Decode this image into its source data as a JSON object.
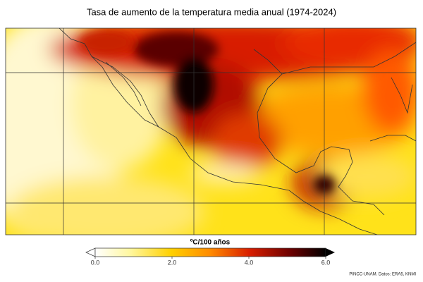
{
  "title": "Tasa de aumento de la temperatura media anual (1974-2024)",
  "colorbar": {
    "label": "ºC/100 años",
    "lim": [
      0,
      6
    ],
    "ticks": [
      {
        "value": 0,
        "label": "0.0"
      },
      {
        "value": 2,
        "label": "2.0"
      },
      {
        "value": 4,
        "label": "4.0"
      },
      {
        "value": 6,
        "label": "6.0"
      }
    ]
  },
  "credit": "PINCC-UNAM. Datos: ERA5, KNMI"
}
